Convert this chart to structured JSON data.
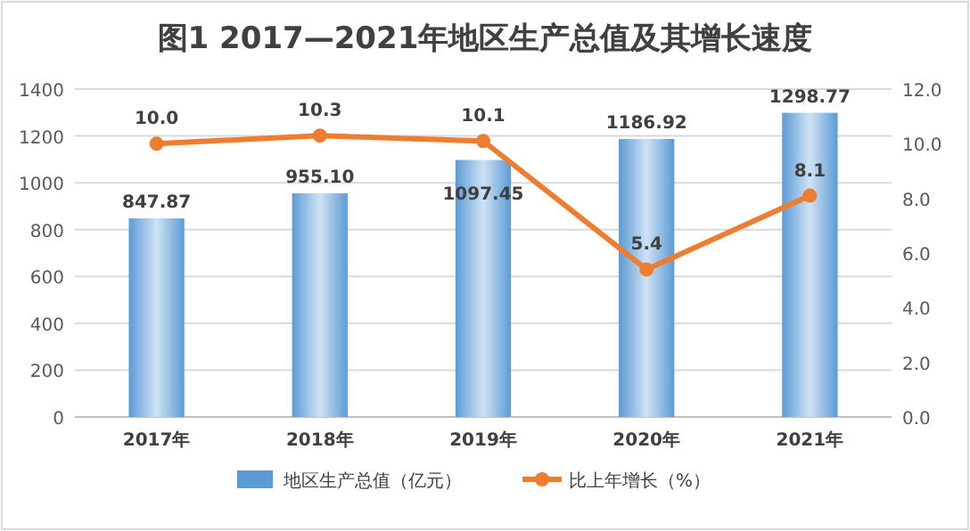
{
  "chart_data": {
    "type": "bar",
    "title": "图1 2017—2021年地区生产总值及其增长速度",
    "categories": [
      "2017年",
      "2018年",
      "2019年",
      "2020年",
      "2021年"
    ],
    "series": [
      {
        "name": "地区生产总值（亿元）",
        "color": "#5b9bd5",
        "values": [
          847.87,
          955.1,
          1097.45,
          1186.92,
          1298.77
        ],
        "value_labels": [
          "847.87",
          "955.10",
          "1097.45",
          "1186.92",
          "1298.77"
        ]
      },
      {
        "name": "比上年增长（%）",
        "type": "line",
        "axis": "y2",
        "color": "#ed7d31",
        "marker": "circle",
        "values": [
          10.0,
          10.3,
          10.1,
          5.4,
          8.1
        ],
        "value_labels": [
          "10.0",
          "10.3",
          "10.1",
          "5.4",
          "8.1"
        ]
      }
    ],
    "ylim": [
      0,
      1400
    ],
    "yticks": [
      0,
      200,
      400,
      600,
      800,
      1000,
      1200,
      1400
    ],
    "y2lim": [
      0,
      12
    ],
    "y2ticks": [
      {
        "value": 0,
        "label": "0.0"
      },
      {
        "value": 2,
        "label": "2.0"
      },
      {
        "value": 4,
        "label": "4.0"
      },
      {
        "value": 6,
        "label": "6.0"
      },
      {
        "value": 8,
        "label": "8.0"
      },
      {
        "value": 10,
        "label": "10.0"
      },
      {
        "value": 12,
        "label": "12.0"
      }
    ],
    "grid": "y",
    "legend": "bottom"
  }
}
